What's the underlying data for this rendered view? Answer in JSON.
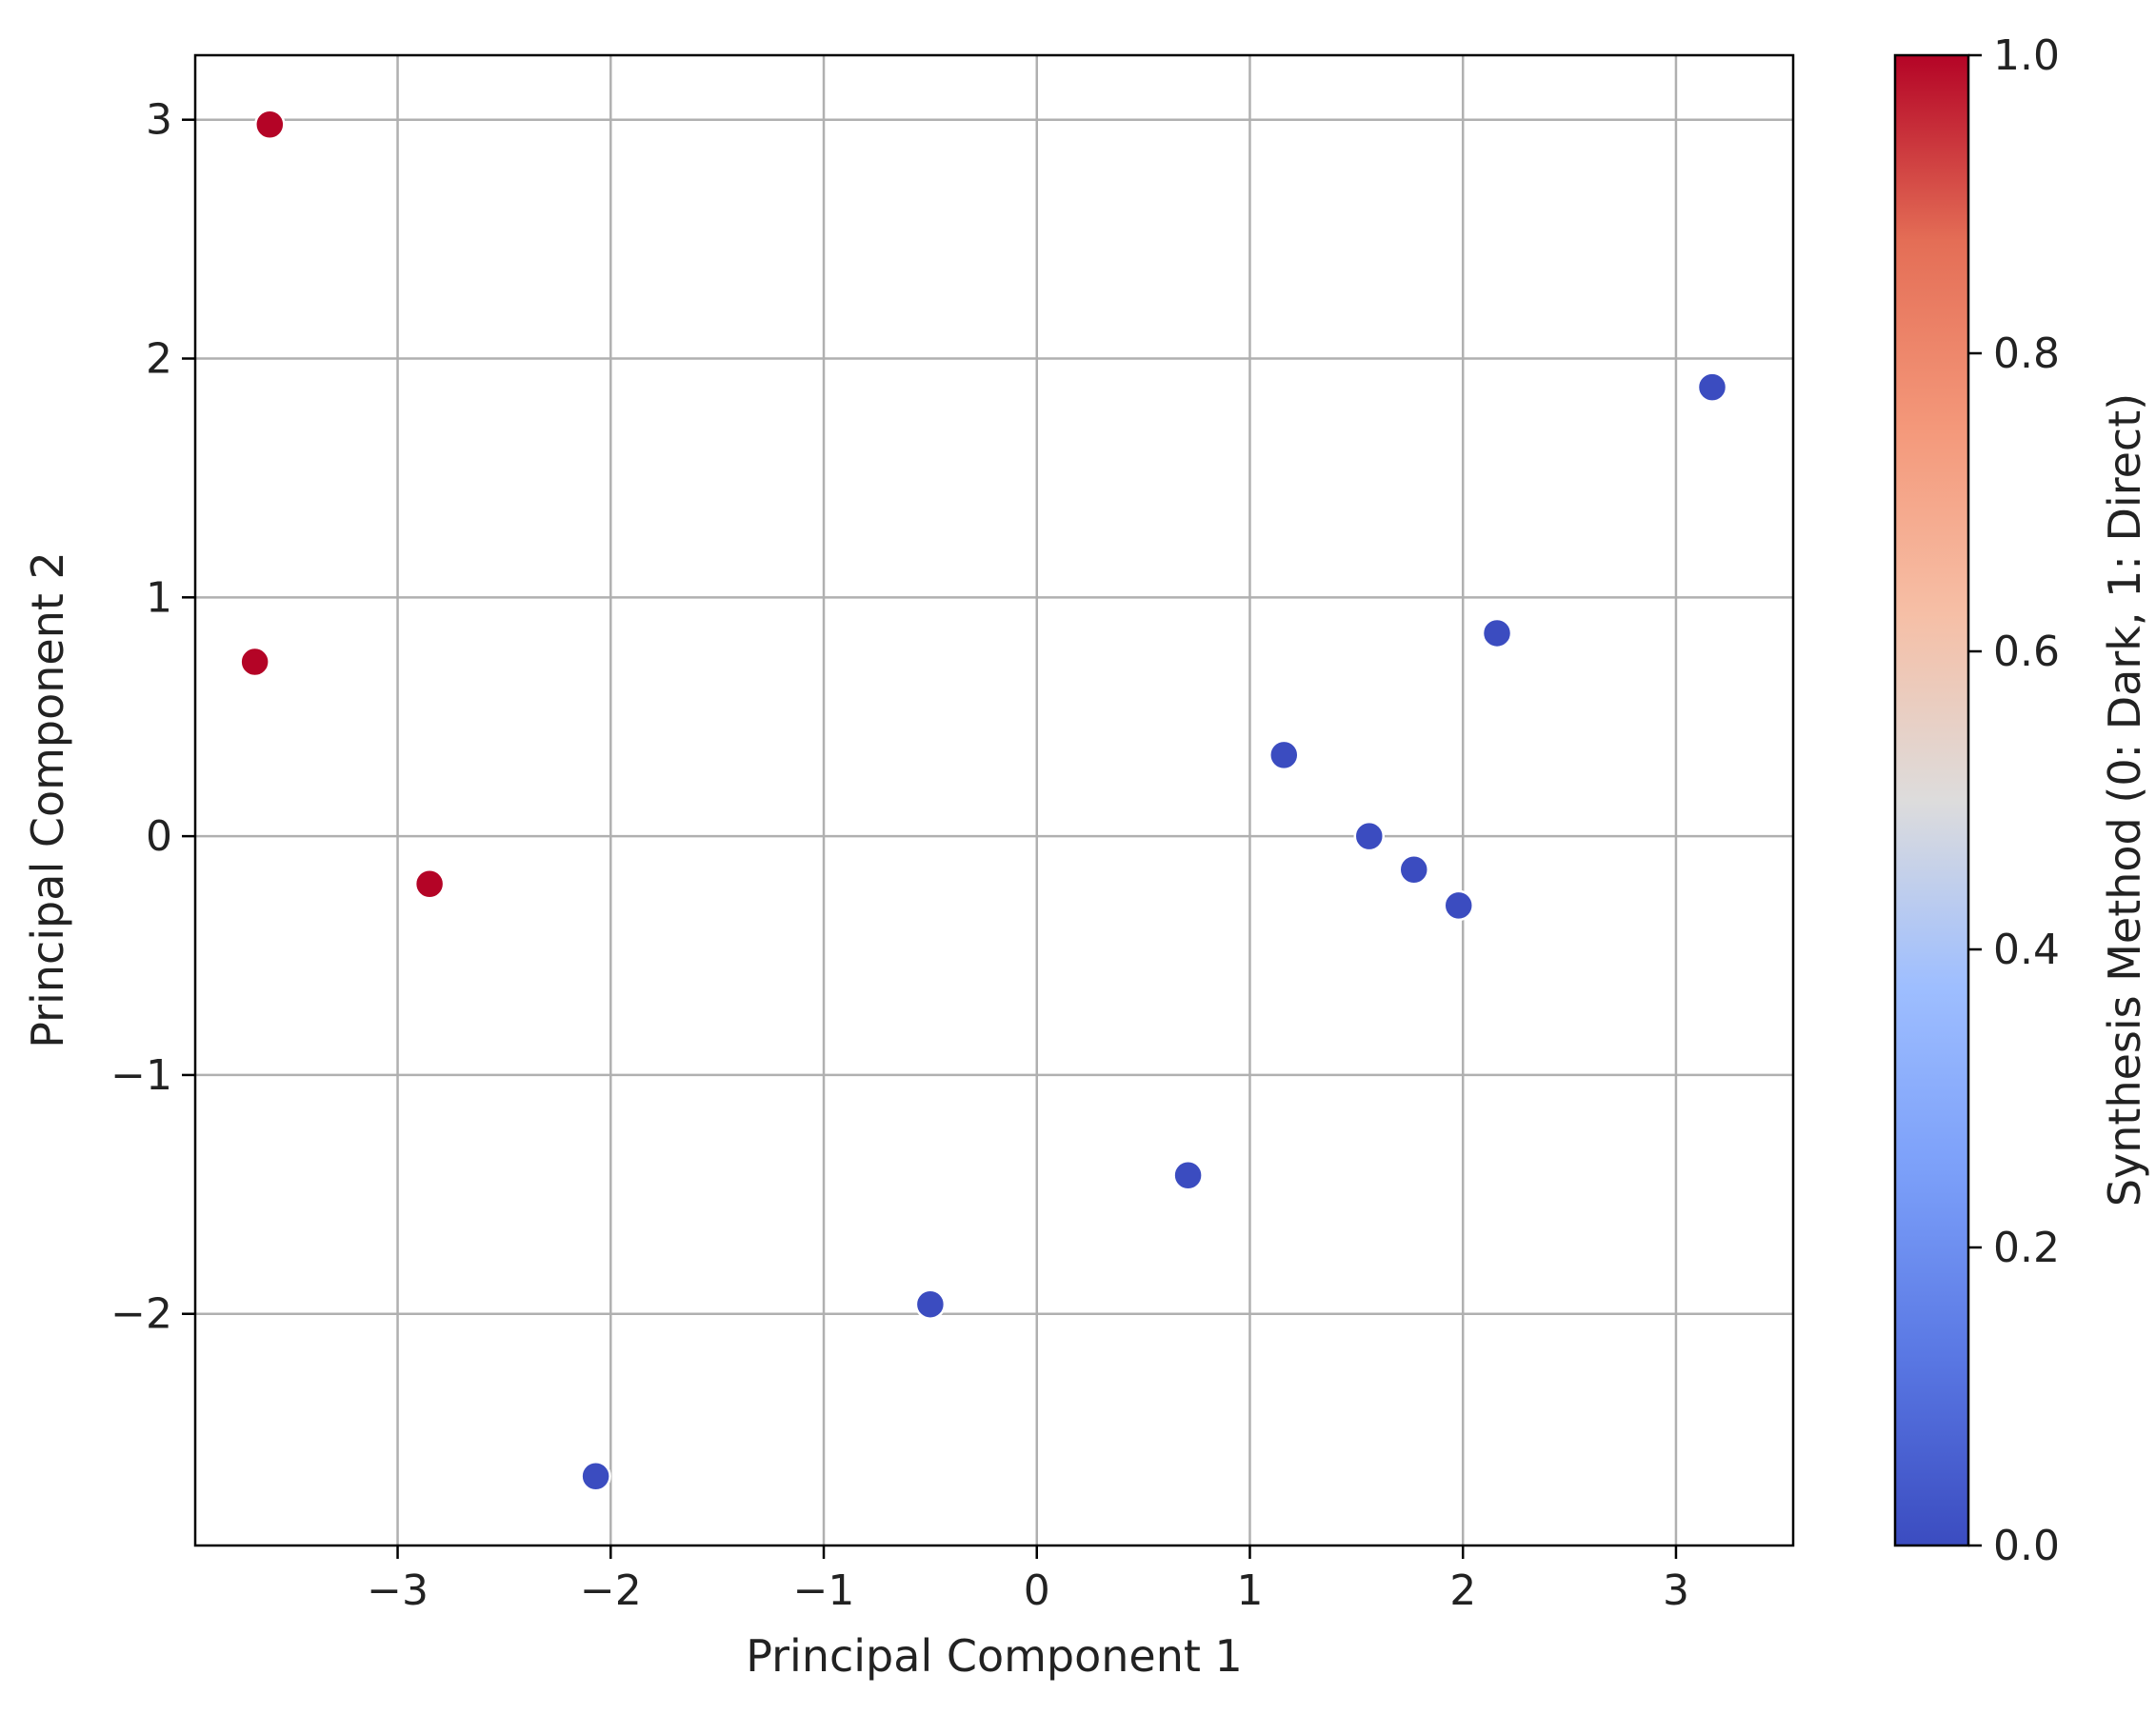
{
  "chart_data": {
    "type": "scatter",
    "title": "",
    "xlabel": "Principal Component 1",
    "ylabel": "Principal Component 2",
    "xlim": [
      -3.95,
      3.55
    ],
    "ylim": [
      -2.97,
      3.27
    ],
    "xticks": [
      -3,
      -2,
      -1,
      0,
      1,
      2,
      3
    ],
    "yticks": [
      -2,
      -1,
      0,
      1,
      2,
      3
    ],
    "xtick_labels": [
      "−3",
      "−2",
      "−1",
      "0",
      "1",
      "2",
      "3"
    ],
    "ytick_labels": [
      "−2",
      "−1",
      "0",
      "1",
      "2",
      "3"
    ],
    "grid": true,
    "points": [
      {
        "x": -3.6,
        "y": 2.98,
        "c": 1
      },
      {
        "x": -3.67,
        "y": 0.73,
        "c": 1
      },
      {
        "x": -2.85,
        "y": -0.2,
        "c": 1
      },
      {
        "x": -2.07,
        "y": -2.68,
        "c": 0
      },
      {
        "x": -0.5,
        "y": -1.96,
        "c": 0
      },
      {
        "x": 0.71,
        "y": -1.42,
        "c": 0
      },
      {
        "x": 1.16,
        "y": 0.34,
        "c": 0
      },
      {
        "x": 1.56,
        "y": 0.0,
        "c": 0
      },
      {
        "x": 1.77,
        "y": -0.14,
        "c": 0
      },
      {
        "x": 1.98,
        "y": -0.29,
        "c": 0
      },
      {
        "x": 2.16,
        "y": 0.85,
        "c": 0
      },
      {
        "x": 3.17,
        "y": 1.88,
        "c": 0
      }
    ],
    "colorbar": {
      "label": "Synthesis Method (0: Dark, 1: Direct)",
      "colormap": "coolwarm",
      "range": [
        0,
        1
      ],
      "ticks": [
        0.0,
        0.2,
        0.4,
        0.6,
        0.8,
        1.0
      ],
      "tick_labels": [
        "0.0",
        "0.2",
        "0.4",
        "0.6",
        "0.8",
        "1.0"
      ]
    }
  }
}
